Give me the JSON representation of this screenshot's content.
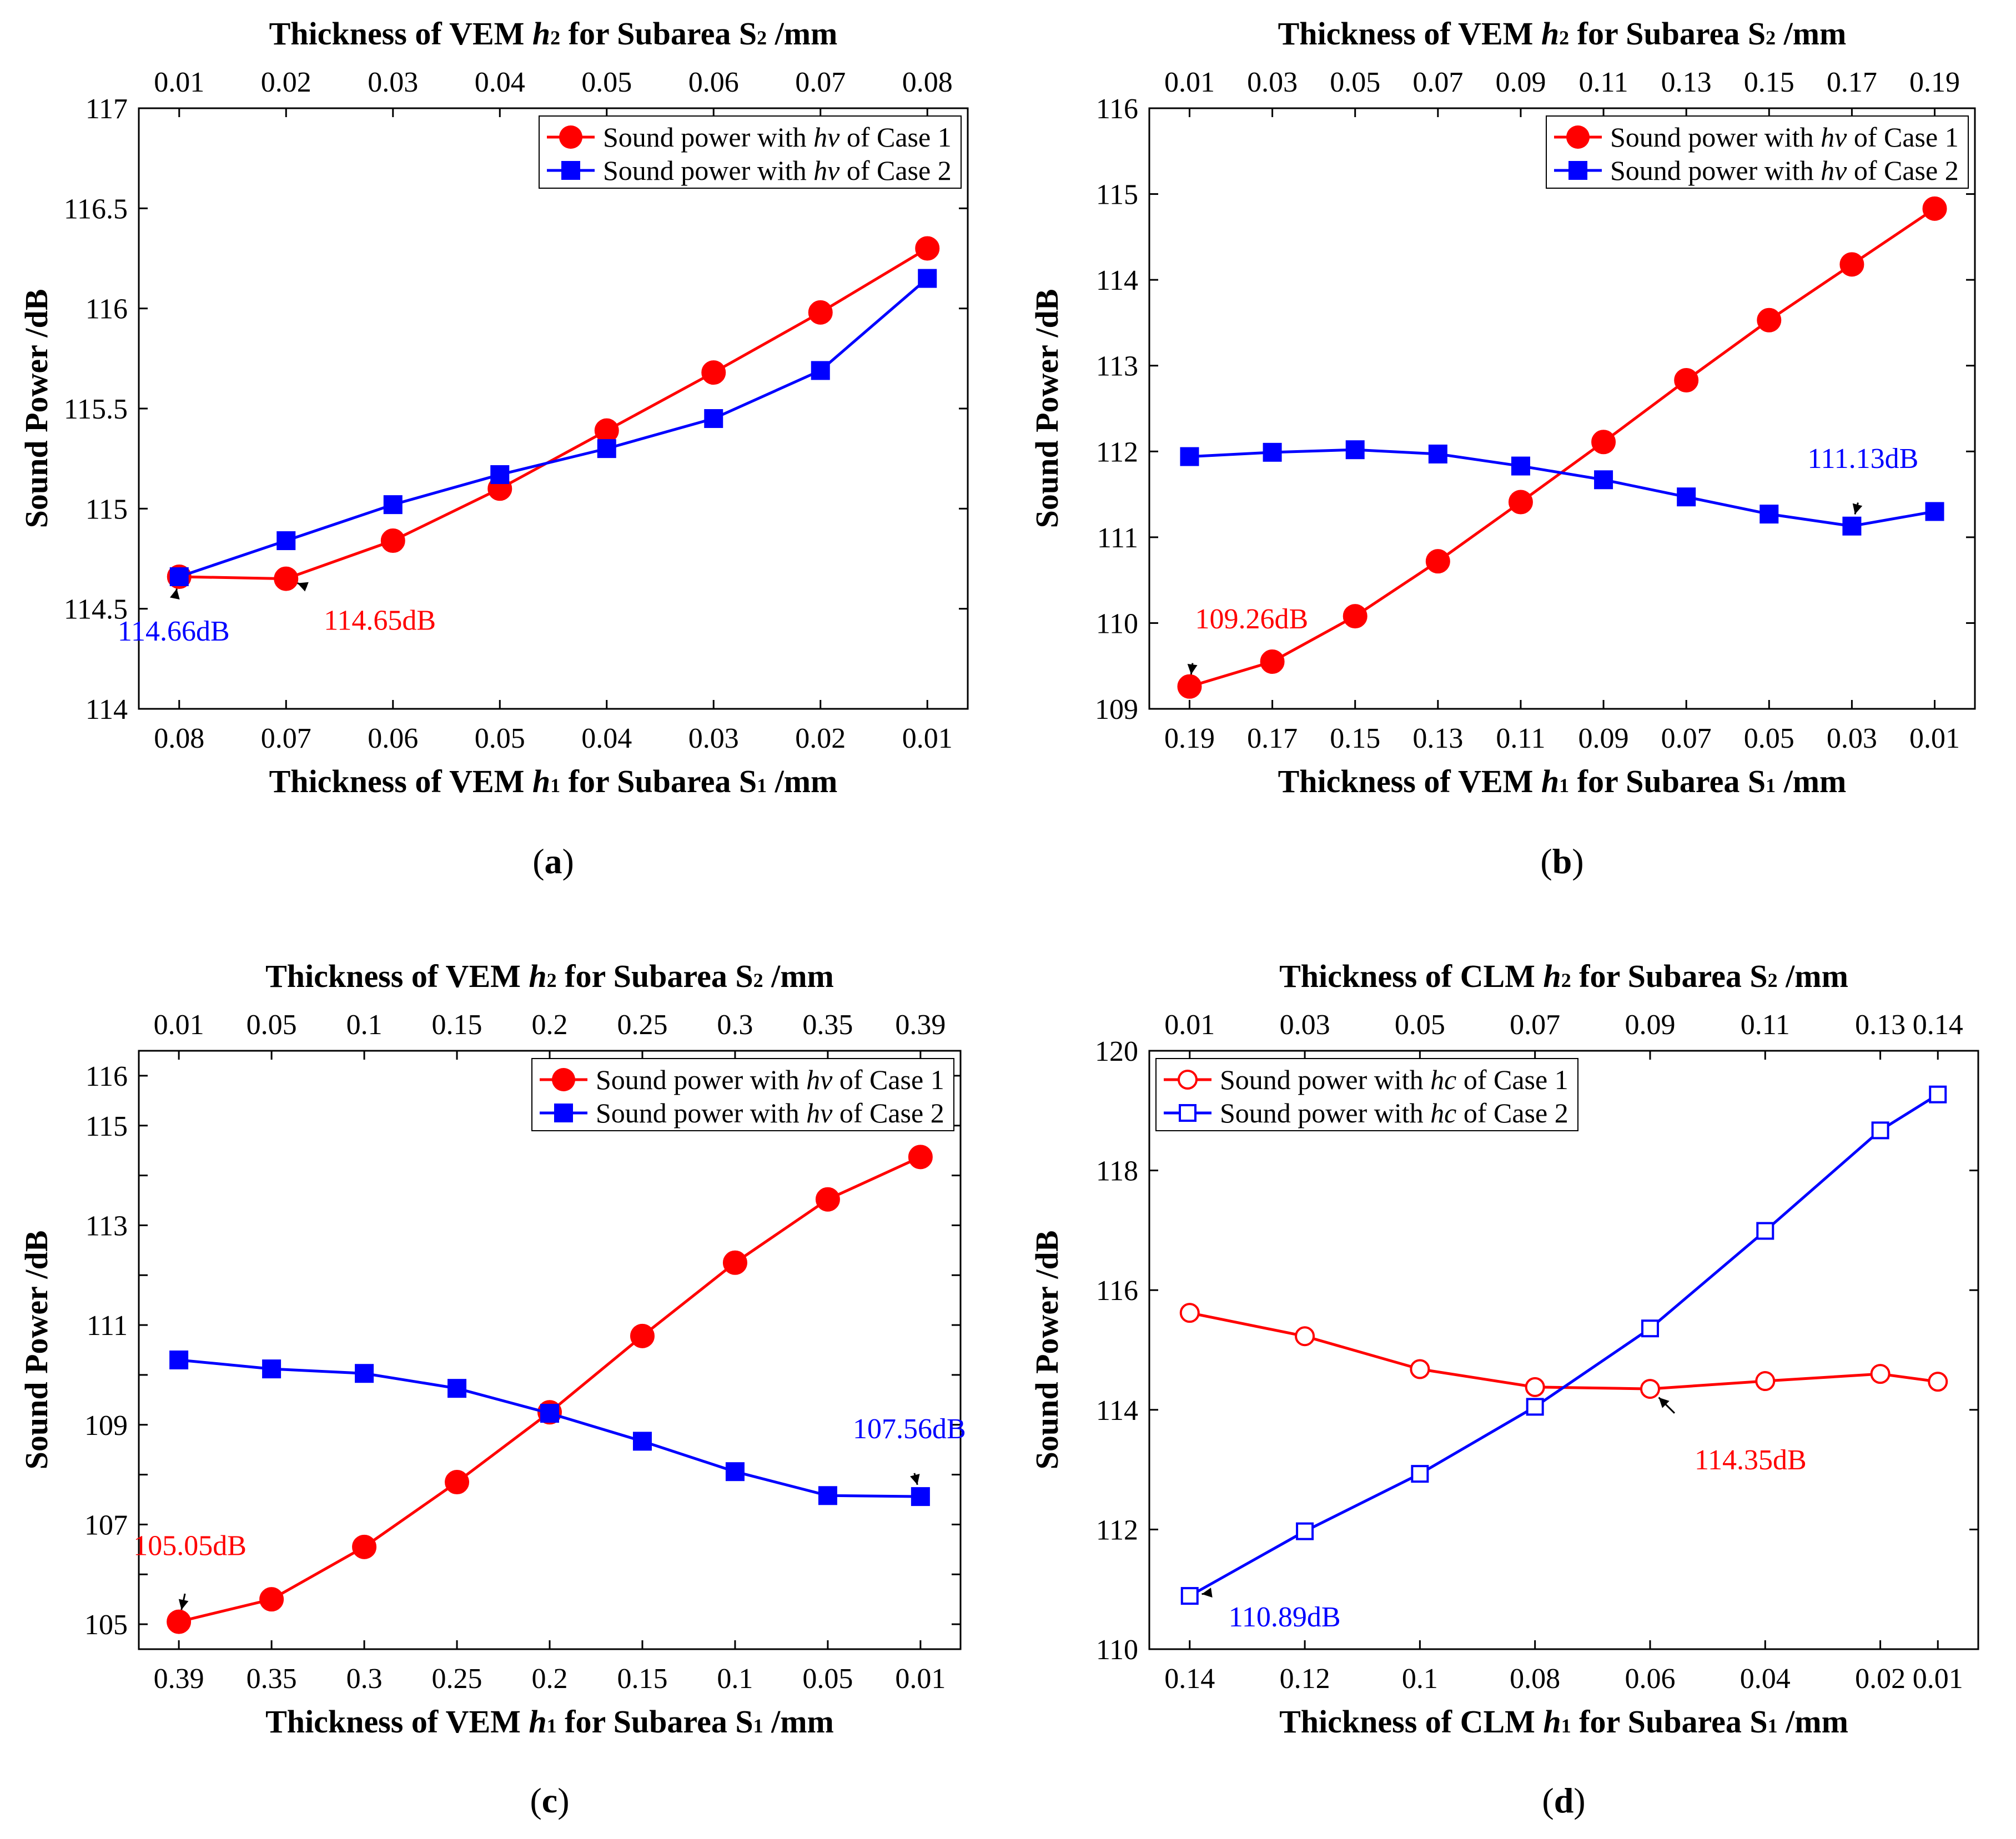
{
  "chart_data": [
    {
      "type": "line",
      "panel_label": "(a)",
      "title": "",
      "top_xlabel": "Thickness  of VEM  h2 for Subarea S2 /mm",
      "xlabel": "Thickness of VEM  h1 for Subarea S1 /mm",
      "ylabel": "Sound Power /dB",
      "ylim": [
        114,
        117
      ],
      "yticks": [
        114,
        114.5,
        115,
        115.5,
        116,
        116.5,
        117
      ],
      "ytick_labels": [
        "114",
        "114.5",
        "115",
        "115.5",
        "116",
        "116.5",
        "117"
      ],
      "categories": [
        "0.08",
        "0.07",
        "0.06",
        "0.05",
        "0.04",
        "0.03",
        "0.02",
        "0.01"
      ],
      "top_categories": [
        "0.01",
        "0.02",
        "0.03",
        "0.04",
        "0.05",
        "0.06",
        "0.07",
        "0.08"
      ],
      "series": [
        {
          "name": "Sound power with hv of Case 1",
          "color": "#ff0000",
          "marker": "filled-circle",
          "values": [
            114.66,
            114.65,
            114.84,
            115.1,
            115.39,
            115.68,
            115.98,
            116.3
          ]
        },
        {
          "name": "Sound power with hv of Case 2",
          "color": "#0000ff",
          "marker": "filled-square",
          "values": [
            114.66,
            114.84,
            115.02,
            115.17,
            115.3,
            115.45,
            115.69,
            116.15
          ]
        }
      ],
      "annotations": [
        {
          "text": "114.66dB",
          "color": "#0000ff",
          "series": 1,
          "index": 0
        },
        {
          "text": "114.65dB",
          "color": "#ff0000",
          "series": 0,
          "index": 1
        }
      ],
      "legend_position": "top-right"
    },
    {
      "type": "line",
      "panel_label": "(b)",
      "title": "",
      "top_xlabel": "Thickness  of VEM  h2 for Subarea S2 /mm",
      "xlabel": "Thickness of VEM  h1 for Subarea S1 /mm",
      "ylabel": "Sound Power /dB",
      "ylim": [
        109,
        116
      ],
      "yticks": [
        109,
        110,
        111,
        112,
        113,
        114,
        115,
        116
      ],
      "ytick_labels": [
        "109",
        "110",
        "111",
        "112",
        "113",
        "114",
        "115",
        "116"
      ],
      "categories": [
        "0.19",
        "0.17",
        "0.15",
        "0.13",
        "0.11",
        "0.09",
        "0.07",
        "0.05",
        "0.03",
        "0.01"
      ],
      "top_categories": [
        "0.01",
        "0.03",
        "0.05",
        "0.07",
        "0.09",
        "0.11",
        "0.13",
        "0.15",
        "0.17",
        "0.19"
      ],
      "series": [
        {
          "name": "Sound power with hv of Case 1",
          "color": "#ff0000",
          "marker": "filled-circle",
          "values": [
            109.26,
            109.55,
            110.08,
            110.72,
            111.41,
            112.11,
            112.83,
            113.53,
            114.18,
            114.83
          ]
        },
        {
          "name": "Sound power with hv of Case 2",
          "color": "#0000ff",
          "marker": "filled-square",
          "values": [
            111.94,
            111.99,
            112.02,
            111.97,
            111.83,
            111.67,
            111.47,
            111.27,
            111.13,
            111.3
          ]
        }
      ],
      "annotations": [
        {
          "text": "109.26dB",
          "color": "#ff0000",
          "series": 0,
          "index": 0
        },
        {
          "text": "111.13dB",
          "color": "#0000ff",
          "series": 1,
          "index": 8
        }
      ],
      "legend_position": "top-right"
    },
    {
      "type": "line",
      "panel_label": "(c)",
      "title": "",
      "top_xlabel": "Thickness  of VEM  h2 for Subarea S2 /mm",
      "xlabel": "Thickness of VEM  h1 for Subarea S1 /mm",
      "ylabel": "Sound Power /dB",
      "ylim": [
        104.5,
        116.5
      ],
      "yticks": [
        105,
        107,
        109,
        111,
        113,
        115
      ],
      "ytick_labels": [
        "105",
        "107",
        "109",
        "111",
        "113",
        "115"
      ],
      "minor_yticks": [
        106,
        108,
        110,
        112,
        114,
        116
      ],
      "minor_ytick_labels": [
        "",
        "",
        "",
        "",
        "",
        "116"
      ],
      "categories": [
        "0.39",
        "0.35",
        "0.3",
        "0.25",
        "0.2",
        "0.15",
        "0.1",
        "0.05",
        "0.01"
      ],
      "top_categories": [
        "0.01",
        "0.05",
        "0.1",
        "0.15",
        "0.2",
        "0.25",
        "0.3",
        "0.35",
        "0.39"
      ],
      "series": [
        {
          "name": "Sound power with hv of Case 1",
          "color": "#ff0000",
          "marker": "filled-circle",
          "values": [
            105.05,
            105.5,
            106.55,
            107.85,
            109.25,
            110.78,
            112.25,
            113.52,
            114.37
          ]
        },
        {
          "name": "Sound power with hv of Case 2",
          "color": "#0000ff",
          "marker": "filled-square",
          "values": [
            110.3,
            110.12,
            110.03,
            109.73,
            109.23,
            108.67,
            108.06,
            107.58,
            107.56
          ]
        }
      ],
      "annotations": [
        {
          "text": "105.05dB",
          "color": "#ff0000",
          "series": 0,
          "index": 0
        },
        {
          "text": "107.56dB",
          "color": "#0000ff",
          "series": 1,
          "index": 8
        }
      ],
      "legend_position": "top-right"
    },
    {
      "type": "line",
      "panel_label": "(d)",
      "title": "",
      "top_xlabel": "Thickness of CLM  h2 for Subarea S2 /mm",
      "xlabel": "Thickness of CLM  h1 for Subarea S1 /mm",
      "ylabel": "Sound Power /dB",
      "ylim": [
        110,
        120
      ],
      "yticks": [
        110,
        112,
        114,
        116,
        118,
        120
      ],
      "ytick_labels": [
        "110",
        "112",
        "114",
        "116",
        "118",
        "120"
      ],
      "categories": [
        "0.14",
        "0.12",
        "0.1",
        "0.08",
        "0.06",
        "0.04",
        "0.02",
        "0.01"
      ],
      "top_categories": [
        "0.01",
        "0.03",
        "0.05",
        "0.07",
        "0.09",
        "0.11",
        "0.13",
        "0.14"
      ],
      "x_positions": [
        0,
        1,
        2,
        3,
        4,
        5,
        6,
        6.5
      ],
      "series": [
        {
          "name": "Sound power with hc of Case 1",
          "color": "#ff0000",
          "marker": "open-circle",
          "values": [
            115.62,
            115.23,
            114.68,
            114.38,
            114.35,
            114.48,
            114.6,
            114.47
          ]
        },
        {
          "name": "Sound power with hc of Case 2",
          "color": "#0000ff",
          "marker": "open-square",
          "values": [
            110.89,
            111.97,
            112.93,
            114.05,
            115.36,
            116.99,
            118.67,
            119.27
          ]
        }
      ],
      "annotations": [
        {
          "text": "110.89dB",
          "color": "#0000ff",
          "series": 1,
          "index": 0
        },
        {
          "text": "114.35dB",
          "color": "#ff0000",
          "series": 0,
          "index": 4
        }
      ],
      "legend_position": "top-left"
    }
  ]
}
